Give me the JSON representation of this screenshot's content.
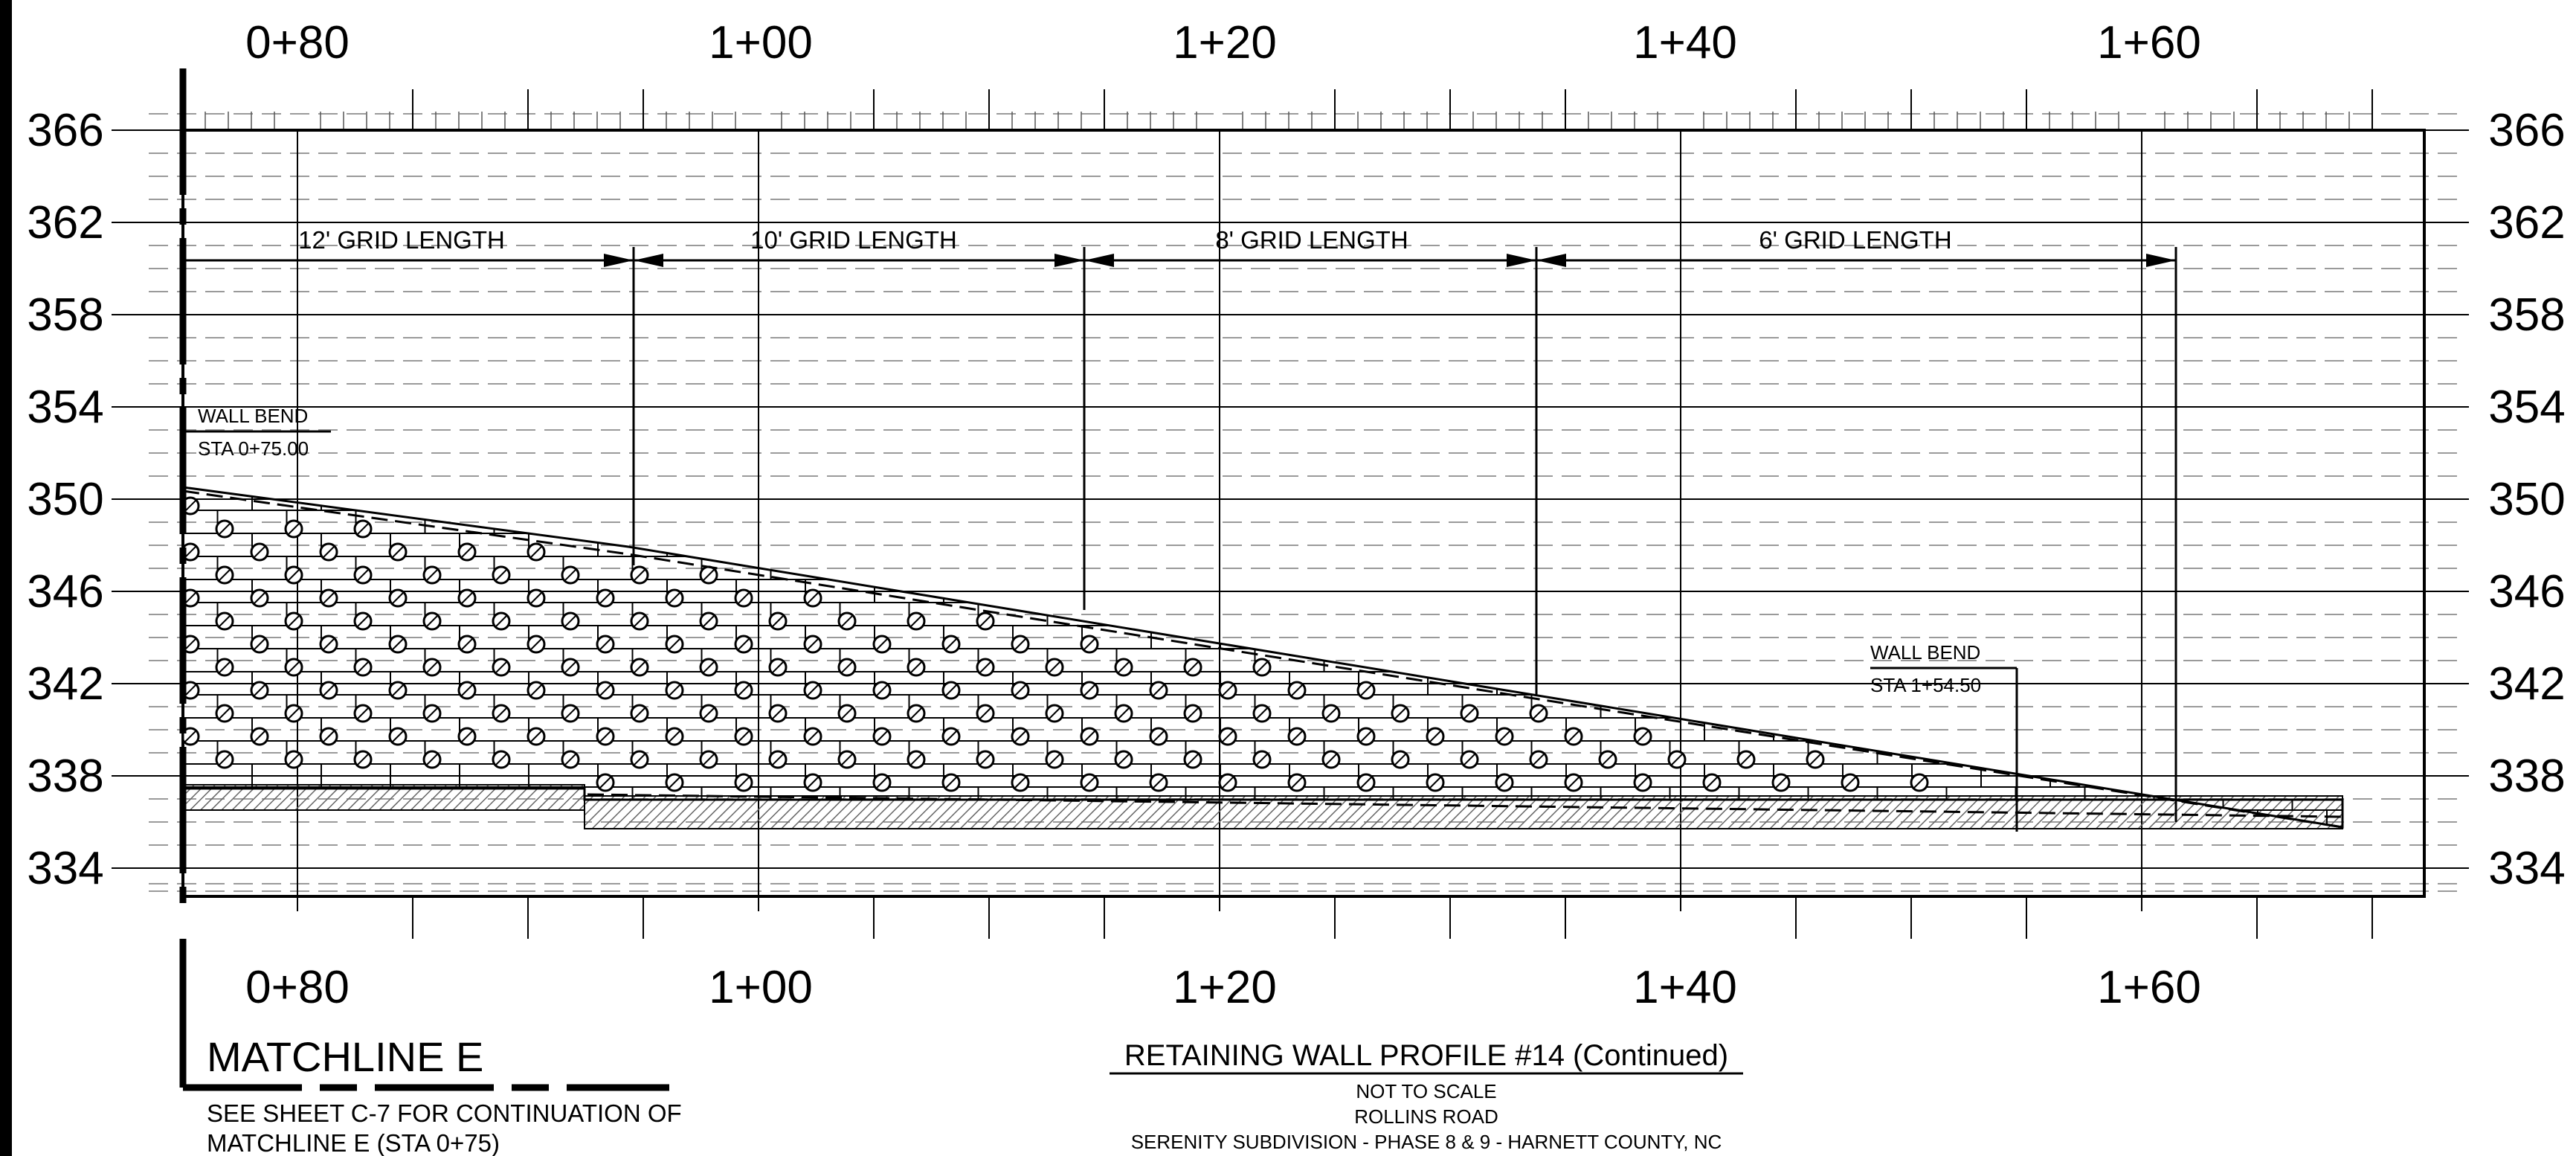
{
  "stations": [
    "0+80",
    "1+00",
    "1+20",
    "1+40",
    "1+60"
  ],
  "elevations": [
    "366",
    "362",
    "358",
    "354",
    "350",
    "346",
    "342",
    "338",
    "334"
  ],
  "grid_lengths": [
    "12' GRID LENGTH",
    "10' GRID LENGTH",
    "8' GRID LENGTH",
    "6' GRID LENGTH"
  ],
  "wall_bend_left": {
    "title": "WALL BEND",
    "station": "STA 0+75.00"
  },
  "wall_bend_right": {
    "title": "WALL BEND",
    "station": "STA 1+54.50"
  },
  "matchline": {
    "label": "MATCHLINE E",
    "note_line1": "SEE SHEET C-7 FOR CONTINUATION OF",
    "note_line2": "MATCHLINE E    (STA 0+75)"
  },
  "title_block": {
    "title": "RETAINING WALL PROFILE #14 (Continued)",
    "scale": "NOT TO SCALE",
    "road": "ROLLINS ROAD",
    "project": "SERENITY SUBDIVISION - PHASE 8 & 9 - HARNETT COUNTY, NC"
  }
}
